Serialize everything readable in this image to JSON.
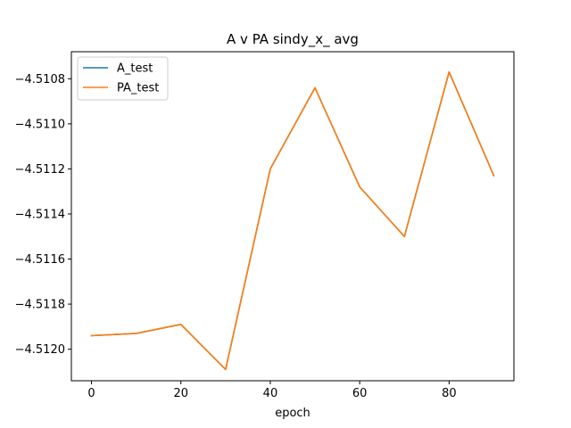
{
  "chart_data": {
    "type": "line",
    "title": "A v PA sindy_x_ avg",
    "xlabel": "epoch",
    "ylabel": "",
    "x": [
      0,
      10,
      20,
      30,
      40,
      50,
      60,
      70,
      80,
      90
    ],
    "xlim": [
      -4.5,
      94.5
    ],
    "ylim": [
      -4.51214,
      -4.51068
    ],
    "xticks": [
      0,
      20,
      40,
      60,
      80
    ],
    "yticks": [
      -4.512,
      -4.5118,
      -4.5116,
      -4.5114,
      -4.5112,
      -4.511,
      -4.5108
    ],
    "ytick_labels": [
      "−4.5120",
      "−4.5118",
      "−4.5116",
      "−4.5114",
      "−4.5112",
      "−4.5110",
      "−4.5108"
    ],
    "grid": false,
    "legend": "top-left",
    "series": [
      {
        "name": "A_test",
        "color": "#1f77b4",
        "values": [
          -4.51194,
          -4.51193,
          -4.51189,
          -4.51209,
          -4.5112,
          -4.51084,
          -4.51128,
          -4.5115,
          -4.51077,
          -4.51123
        ]
      },
      {
        "name": "PA_test",
        "color": "#ff7f0e",
        "values": [
          -4.51194,
          -4.51193,
          -4.51189,
          -4.51209,
          -4.5112,
          -4.51084,
          -4.51128,
          -4.5115,
          -4.51077,
          -4.51123
        ]
      }
    ]
  }
}
